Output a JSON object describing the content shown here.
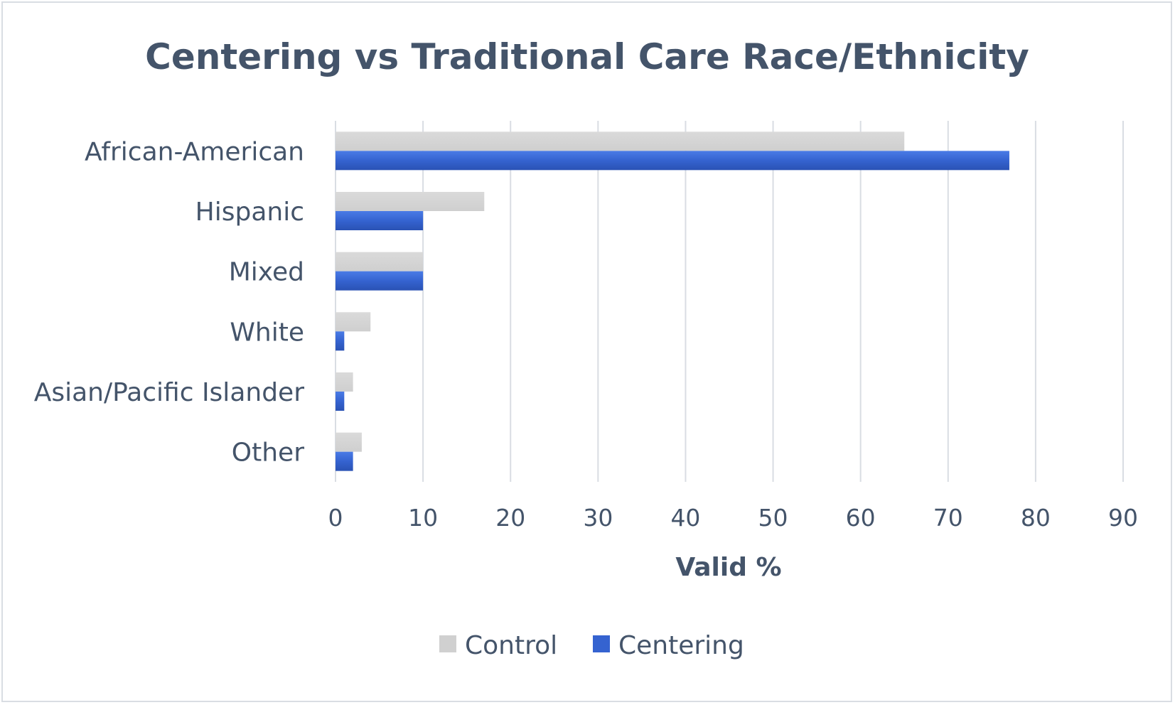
{
  "chart_data": {
    "type": "bar",
    "orientation": "horizontal",
    "title": "Centering vs Traditional Care Race/Ethnicity",
    "xlabel": "Valid %",
    "ylabel": "",
    "xlim": [
      0,
      90
    ],
    "x_ticks": [
      0,
      10,
      20,
      30,
      40,
      50,
      60,
      70,
      80,
      90
    ],
    "grid": true,
    "legend_position": "bottom",
    "categories": [
      "African-American",
      "Hispanic",
      "Mixed",
      "White",
      "Asian/Pacific Islander",
      "Other"
    ],
    "series": [
      {
        "name": "Control",
        "color": "#d0d0d0",
        "values": [
          65,
          17,
          10,
          4,
          2,
          3
        ]
      },
      {
        "name": "Centering",
        "color": "#3563d0",
        "values": [
          77,
          10,
          10,
          1,
          1,
          2
        ]
      }
    ]
  }
}
